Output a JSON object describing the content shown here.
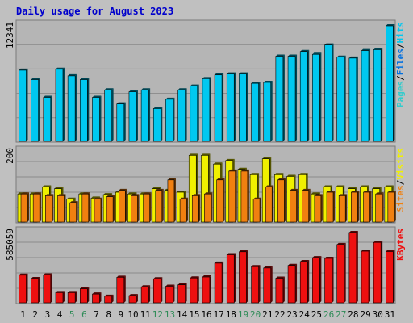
{
  "colors": {
    "background": "#c0c0c0",
    "panel": "#b5b5b5",
    "title": "#0000cc",
    "hits": "#00c8f0",
    "files": "#0070e0",
    "pages": "#33cccc",
    "visits": "#f0f000",
    "sites": "#f08010",
    "kbytes": "#ee1010",
    "weekday_label": "#000000",
    "weekend_label": "#2e8b57",
    "separator": "#000000"
  },
  "chart_data": [
    {
      "type": "bar",
      "title": "Daily usage for August 2023",
      "panel": "hits_files_pages",
      "side_labels": [
        "Pages",
        "Files",
        "Hits"
      ],
      "separator": "/",
      "ymax_label": "12341",
      "ylim": [
        0,
        12341
      ],
      "categories": [
        "1",
        "2",
        "3",
        "4",
        "5",
        "6",
        "7",
        "8",
        "9",
        "10",
        "11",
        "12",
        "13",
        "14",
        "15",
        "16",
        "17",
        "18",
        "19",
        "20",
        "21",
        "22",
        "23",
        "24",
        "25",
        "26",
        "27",
        "28",
        "29",
        "30",
        "31"
      ],
      "weekend_days": [
        "5",
        "6",
        "12",
        "13",
        "19",
        "20",
        "26",
        "27"
      ],
      "series": [
        {
          "name": "Hits",
          "values": [
            7600,
            6600,
            4700,
            7700,
            7000,
            6600,
            4700,
            5500,
            4000,
            5300,
            5500,
            3500,
            4500,
            5500,
            5900,
            6700,
            7100,
            7200,
            7200,
            6200,
            6300,
            9100,
            9100,
            9600,
            9300,
            10300,
            9000,
            8900,
            9700,
            9800,
            12341
          ]
        },
        {
          "name": "Files",
          "values": [
            7600,
            6600,
            4700,
            7700,
            7000,
            6600,
            4700,
            5500,
            4000,
            5300,
            5500,
            3500,
            4500,
            5500,
            5900,
            6700,
            7100,
            7200,
            7200,
            6200,
            6300,
            9100,
            9100,
            9600,
            9300,
            10300,
            9000,
            8900,
            9700,
            9800,
            12341
          ]
        }
      ]
    },
    {
      "type": "bar",
      "panel": "visits_sites",
      "side_labels": [
        "Sites",
        "Visits"
      ],
      "separator": "/",
      "ymax_label": "200",
      "ylim": [
        0,
        200
      ],
      "categories": [
        "1",
        "2",
        "3",
        "4",
        "5",
        "6",
        "7",
        "8",
        "9",
        "10",
        "11",
        "12",
        "13",
        "14",
        "15",
        "16",
        "17",
        "18",
        "19",
        "20",
        "21",
        "22",
        "23",
        "24",
        "25",
        "26",
        "27",
        "28",
        "29",
        "30",
        "31"
      ],
      "series": [
        {
          "name": "Visits",
          "values": [
            80,
            80,
            100,
            95,
            65,
            80,
            68,
            78,
            85,
            80,
            80,
            95,
            90,
            85,
            190,
            190,
            165,
            175,
            150,
            135,
            180,
            135,
            130,
            135,
            80,
            100,
            100,
            95,
            100,
            95,
            100
          ]
        },
        {
          "name": "Sites",
          "values": [
            80,
            80,
            75,
            75,
            55,
            80,
            65,
            72,
            90,
            75,
            80,
            90,
            120,
            65,
            75,
            80,
            120,
            145,
            145,
            65,
            100,
            120,
            90,
            90,
            75,
            85,
            75,
            85,
            85,
            80,
            85
          ]
        }
      ]
    },
    {
      "type": "bar",
      "panel": "kbytes",
      "side_labels": [
        "KBytes"
      ],
      "ymax_label": "585059",
      "ylim": [
        0,
        585059
      ],
      "categories": [
        "1",
        "2",
        "3",
        "4",
        "5",
        "6",
        "7",
        "8",
        "9",
        "10",
        "11",
        "12",
        "13",
        "14",
        "15",
        "16",
        "17",
        "18",
        "19",
        "20",
        "21",
        "22",
        "23",
        "24",
        "25",
        "26",
        "27",
        "28",
        "29",
        "30",
        "31"
      ],
      "series": [
        {
          "name": "KBytes",
          "values": [
            230000,
            202000,
            232000,
            85000,
            85000,
            117000,
            73000,
            55000,
            213000,
            60000,
            133000,
            200000,
            138000,
            150000,
            207000,
            215000,
            330000,
            400000,
            425000,
            301000,
            290000,
            205000,
            311000,
            343000,
            376000,
            370000,
            485000,
            585059,
            430000,
            503000,
            427000
          ]
        }
      ]
    }
  ]
}
